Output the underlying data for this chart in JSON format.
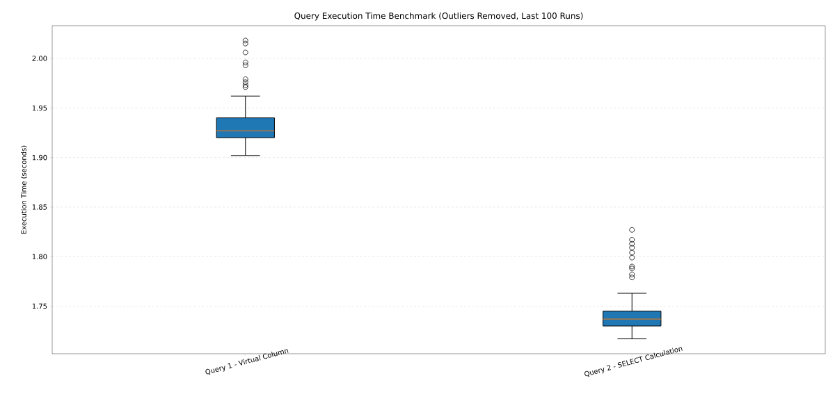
{
  "chart_data": {
    "type": "box",
    "title": "Query Execution Time Benchmark (Outliers Removed, Last 100 Runs)",
    "ylabel": "Execution Time (seconds)",
    "categories": [
      "Query 1 - Virtual Column",
      "Query 2 - SELECT Calculation"
    ],
    "color": "#1f77b4",
    "boxes": [
      {
        "low": 1.902,
        "q1": 1.92,
        "median": 1.927,
        "q3": 1.94,
        "high": 1.962,
        "outliers": [
          2.018,
          2.015,
          2.006,
          1.996,
          1.993,
          1.979,
          1.976,
          1.973,
          1.971
        ]
      },
      {
        "low": 1.717,
        "q1": 1.73,
        "median": 1.737,
        "q3": 1.745,
        "high": 1.763,
        "outliers": [
          1.827,
          1.817,
          1.813,
          1.809,
          1.804,
          1.799,
          1.79,
          1.788,
          1.782,
          1.779
        ]
      }
    ],
    "ylim": [
      1.702,
      2.033
    ],
    "yticks": [
      {
        "value": 1.75,
        "label": "1.75"
      },
      {
        "value": 1.8,
        "label": "1.80"
      },
      {
        "value": 1.85,
        "label": "1.85"
      },
      {
        "value": 1.9,
        "label": "1.90"
      },
      {
        "value": 1.95,
        "label": "1.95"
      },
      {
        "value": 2.0,
        "label": "2.00"
      }
    ],
    "grid": "y"
  }
}
